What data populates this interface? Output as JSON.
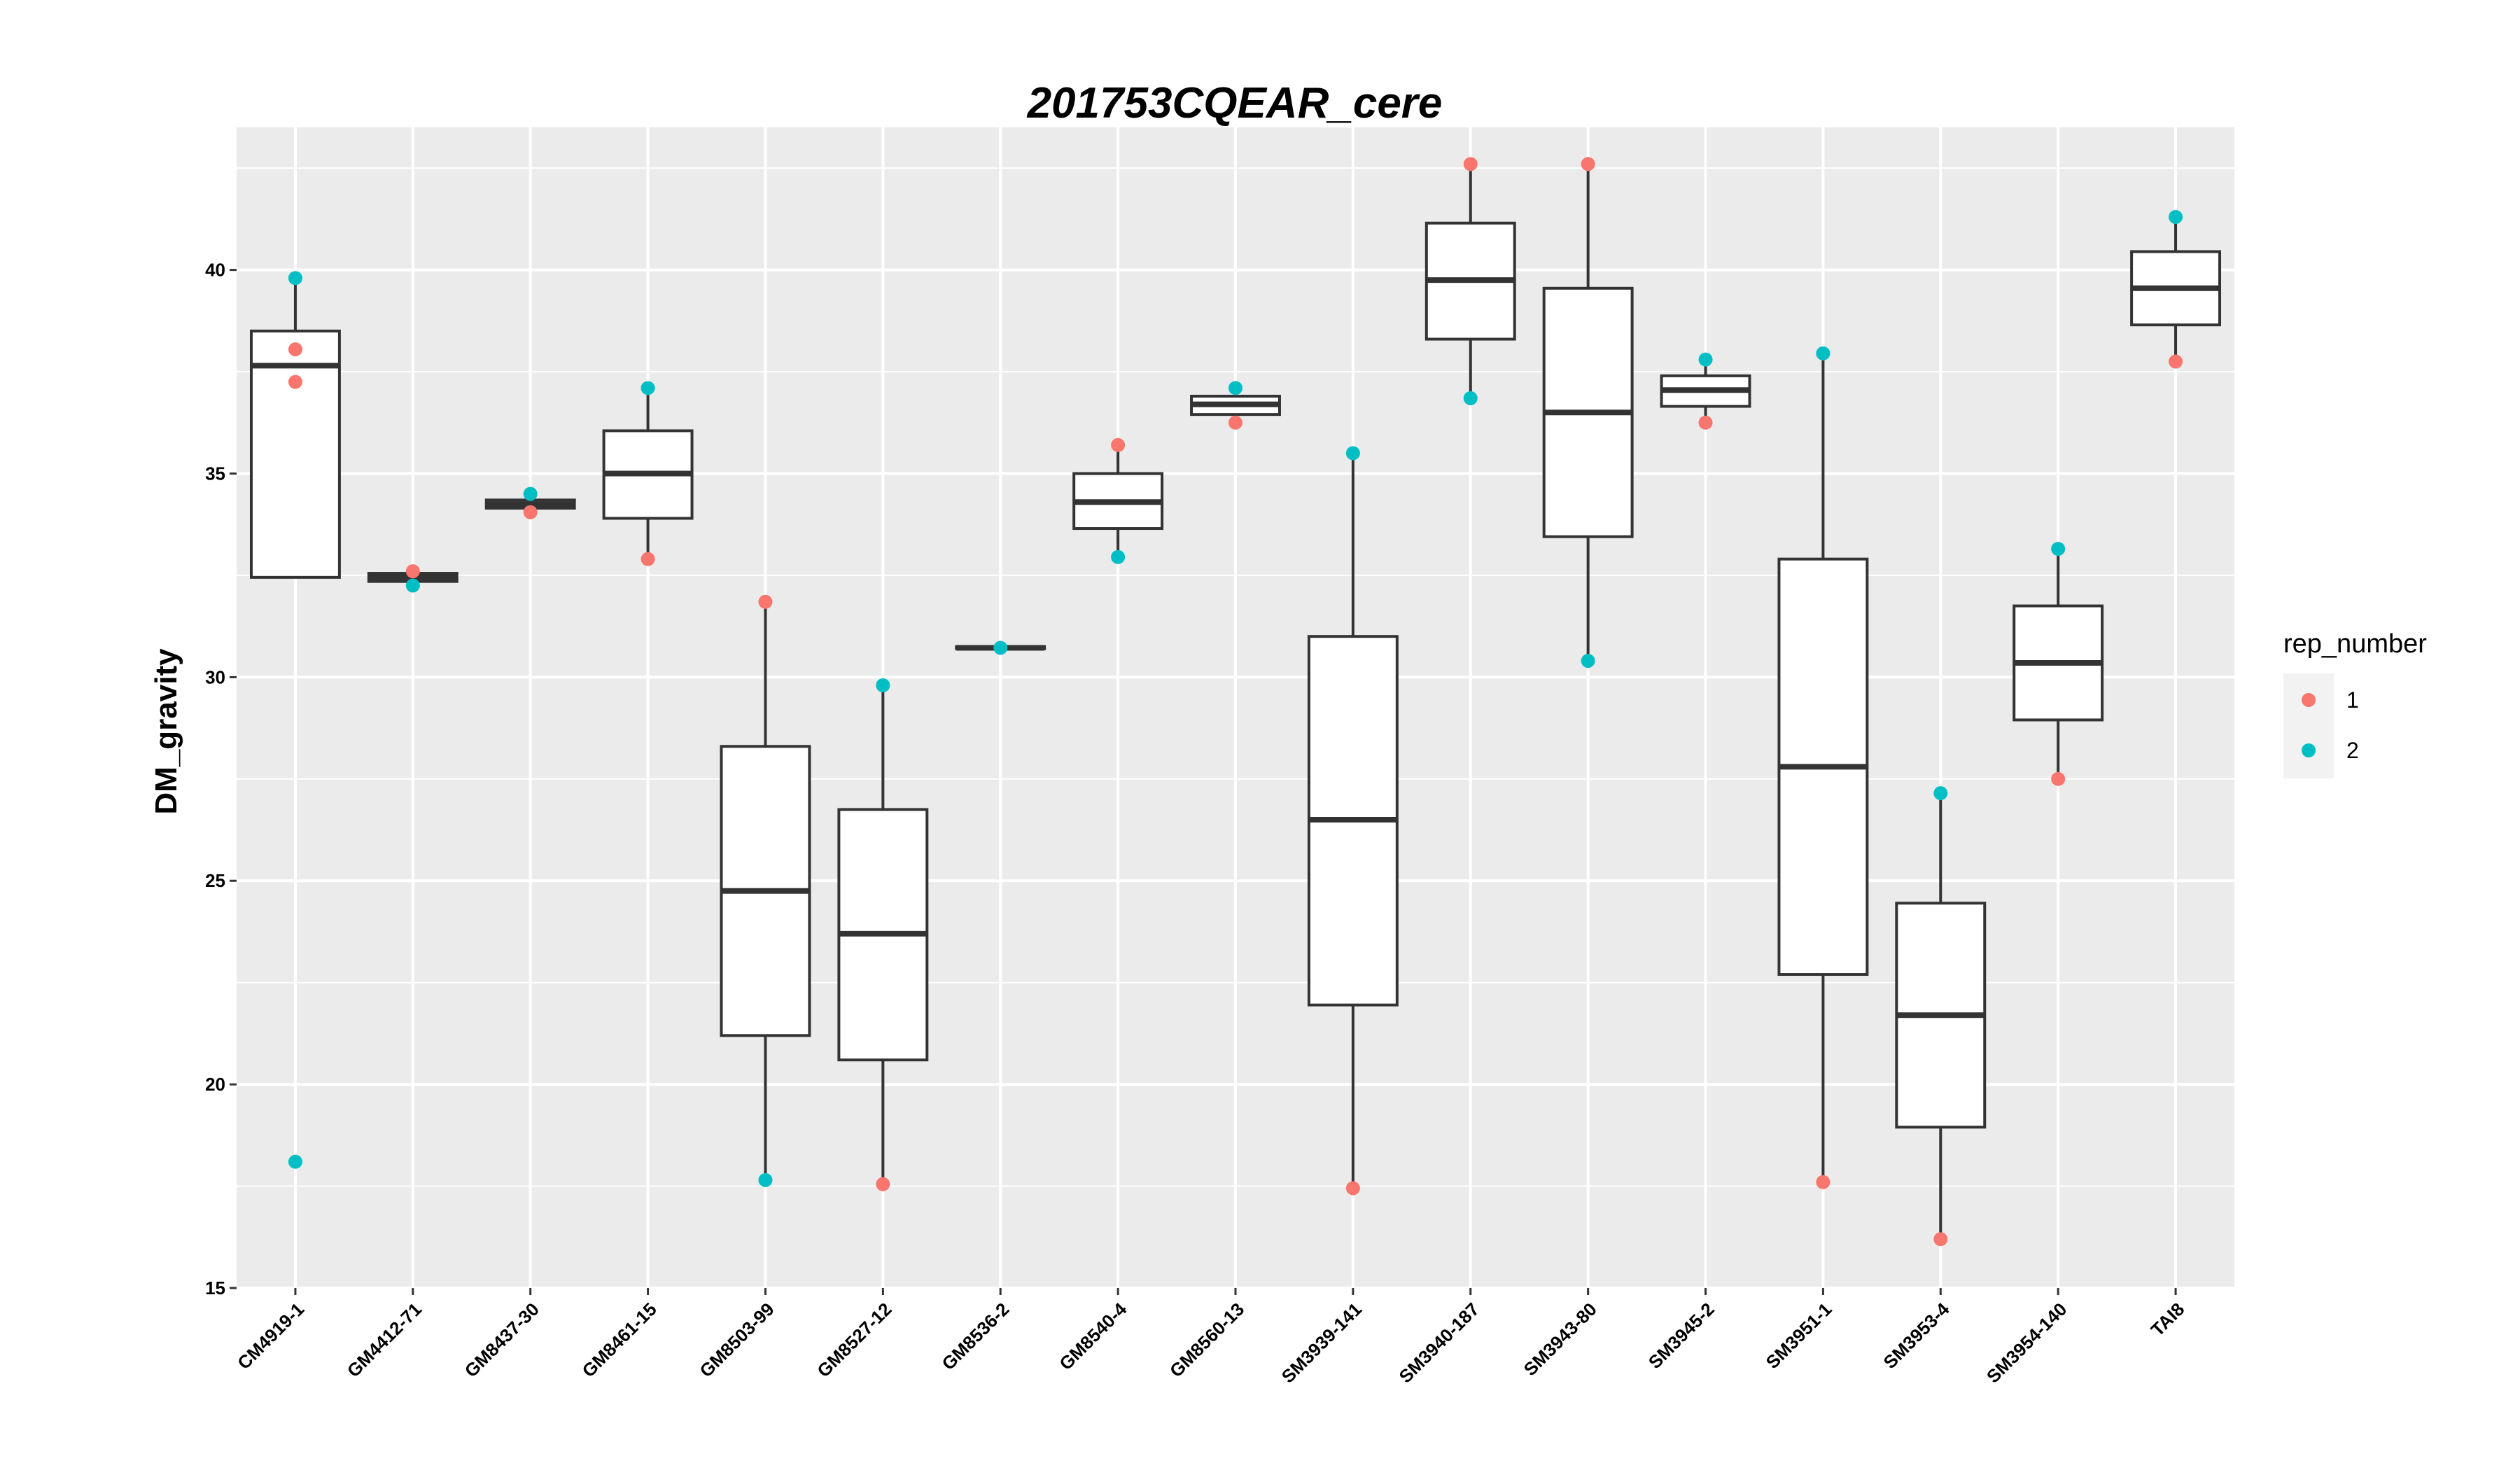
{
  "chart_data": {
    "type": "box",
    "title": "201753CQEAR_cere",
    "xlabel": "",
    "ylabel": "DM_gravity",
    "ylim": [
      15,
      43.5
    ],
    "yticks": [
      15,
      20,
      25,
      30,
      35,
      40
    ],
    "grid": true,
    "legend": {
      "title": "rep_number",
      "position": "right",
      "entries": [
        {
          "label": "1",
          "color": "#F8766D"
        },
        {
          "label": "2",
          "color": "#00BFC4"
        }
      ]
    },
    "categories": [
      "CM4919-1",
      "GM4412-71",
      "GM8437-30",
      "GM8461-15",
      "GM8503-99",
      "GM8527-12",
      "GM8536-2",
      "GM8540-4",
      "GM8560-13",
      "SM3939-141",
      "SM3940-187",
      "SM3943-80",
      "SM3945-2",
      "SM3951-1",
      "SM3953-4",
      "SM3954-140",
      "TAI8"
    ],
    "boxes": [
      {
        "q1": 32.45,
        "median": 37.65,
        "q3": 38.5,
        "whisker_low": 32.45,
        "whisker_high": 39.8
      },
      {
        "q1": 32.35,
        "median": 32.45,
        "q3": 32.55,
        "whisker_low": 32.35,
        "whisker_high": 32.55
      },
      {
        "q1": 34.15,
        "median": 34.25,
        "q3": 34.35,
        "whisker_low": 34.15,
        "whisker_high": 34.35
      },
      {
        "q1": 33.9,
        "median": 35.0,
        "q3": 36.05,
        "whisker_low": 32.9,
        "whisker_high": 37.1
      },
      {
        "q1": 21.2,
        "median": 24.75,
        "q3": 28.3,
        "whisker_low": 17.65,
        "whisker_high": 31.85
      },
      {
        "q1": 20.6,
        "median": 23.7,
        "q3": 26.75,
        "whisker_low": 17.55,
        "whisker_high": 29.8
      },
      {
        "q1": 30.7,
        "median": 30.72,
        "q3": 30.75,
        "whisker_low": 30.7,
        "whisker_high": 30.75
      },
      {
        "q1": 33.65,
        "median": 34.3,
        "q3": 35.0,
        "whisker_low": 32.95,
        "whisker_high": 35.7
      },
      {
        "q1": 36.45,
        "median": 36.7,
        "q3": 36.9,
        "whisker_low": 36.25,
        "whisker_high": 37.1
      },
      {
        "q1": 21.95,
        "median": 26.5,
        "q3": 31.0,
        "whisker_low": 17.45,
        "whisker_high": 35.5
      },
      {
        "q1": 38.3,
        "median": 39.75,
        "q3": 41.15,
        "whisker_low": 36.85,
        "whisker_high": 42.6
      },
      {
        "q1": 33.45,
        "median": 36.5,
        "q3": 39.55,
        "whisker_low": 30.4,
        "whisker_high": 42.6
      },
      {
        "q1": 36.65,
        "median": 37.05,
        "q3": 37.4,
        "whisker_low": 36.25,
        "whisker_high": 37.8
      },
      {
        "q1": 22.7,
        "median": 27.8,
        "q3": 32.9,
        "whisker_low": 17.6,
        "whisker_high": 37.95
      },
      {
        "q1": 18.95,
        "median": 21.7,
        "q3": 24.45,
        "whisker_low": 16.2,
        "whisker_high": 27.15
      },
      {
        "q1": 28.95,
        "median": 30.35,
        "q3": 31.75,
        "whisker_low": 27.5,
        "whisker_high": 33.15
      },
      {
        "q1": 38.65,
        "median": 39.55,
        "q3": 40.45,
        "whisker_low": 37.75,
        "whisker_high": 41.3
      }
    ],
    "points": [
      {
        "category": 0,
        "y": 38.05,
        "rep": "1"
      },
      {
        "category": 0,
        "y": 37.25,
        "rep": "1"
      },
      {
        "category": 0,
        "y": 39.8,
        "rep": "2"
      },
      {
        "category": 0,
        "y": 18.1,
        "rep": "2"
      },
      {
        "category": 1,
        "y": 32.6,
        "rep": "1"
      },
      {
        "category": 1,
        "y": 32.25,
        "rep": "2"
      },
      {
        "category": 2,
        "y": 34.05,
        "rep": "1"
      },
      {
        "category": 2,
        "y": 34.5,
        "rep": "2"
      },
      {
        "category": 3,
        "y": 32.9,
        "rep": "1"
      },
      {
        "category": 3,
        "y": 37.1,
        "rep": "2"
      },
      {
        "category": 4,
        "y": 31.85,
        "rep": "1"
      },
      {
        "category": 4,
        "y": 17.65,
        "rep": "2"
      },
      {
        "category": 5,
        "y": 17.55,
        "rep": "1"
      },
      {
        "category": 5,
        "y": 29.8,
        "rep": "2"
      },
      {
        "category": 6,
        "y": 30.72,
        "rep": "2"
      },
      {
        "category": 7,
        "y": 35.7,
        "rep": "1"
      },
      {
        "category": 7,
        "y": 32.95,
        "rep": "2"
      },
      {
        "category": 8,
        "y": 36.25,
        "rep": "1"
      },
      {
        "category": 8,
        "y": 37.1,
        "rep": "2"
      },
      {
        "category": 9,
        "y": 17.45,
        "rep": "1"
      },
      {
        "category": 9,
        "y": 35.5,
        "rep": "2"
      },
      {
        "category": 10,
        "y": 42.6,
        "rep": "1"
      },
      {
        "category": 10,
        "y": 36.85,
        "rep": "2"
      },
      {
        "category": 11,
        "y": 42.6,
        "rep": "1"
      },
      {
        "category": 11,
        "y": 30.4,
        "rep": "2"
      },
      {
        "category": 12,
        "y": 36.25,
        "rep": "1"
      },
      {
        "category": 12,
        "y": 37.8,
        "rep": "2"
      },
      {
        "category": 13,
        "y": 17.6,
        "rep": "1"
      },
      {
        "category": 13,
        "y": 37.95,
        "rep": "2"
      },
      {
        "category": 14,
        "y": 16.2,
        "rep": "1"
      },
      {
        "category": 14,
        "y": 27.15,
        "rep": "2"
      },
      {
        "category": 15,
        "y": 27.5,
        "rep": "1"
      },
      {
        "category": 15,
        "y": 33.15,
        "rep": "2"
      },
      {
        "category": 16,
        "y": 37.75,
        "rep": "1"
      },
      {
        "category": 16,
        "y": 41.3,
        "rep": "2"
      }
    ]
  }
}
